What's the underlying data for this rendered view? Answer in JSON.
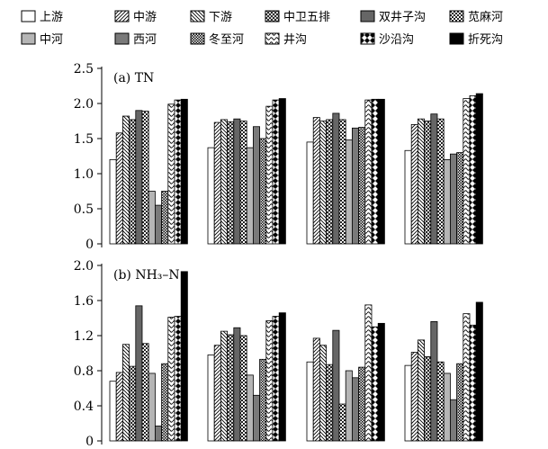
{
  "legend": [
    {
      "name": "上游",
      "pattern": "white"
    },
    {
      "name": "中游",
      "pattern": "diag-fwd"
    },
    {
      "name": "下游",
      "pattern": "diag-back"
    },
    {
      "name": "中卫五排",
      "pattern": "crosshatch"
    },
    {
      "name": "双井子沟",
      "pattern": "darkgray"
    },
    {
      "name": "苋麻河",
      "pattern": "checker"
    },
    {
      "name": "中河",
      "pattern": "lightgray"
    },
    {
      "name": "西河",
      "pattern": "midgray"
    },
    {
      "name": "冬至河",
      "pattern": "dense-checker"
    },
    {
      "name": "井沟",
      "pattern": "wave"
    },
    {
      "name": "沙沿沟",
      "pattern": "hourglass"
    },
    {
      "name": "折死沟",
      "pattern": "black"
    }
  ],
  "colors": {
    "black": "#000000",
    "darkgray": "#666666",
    "midgray": "#7a7a7a",
    "lightgray": "#b5b5b5",
    "white": "#ffffff"
  },
  "chart_data": [
    {
      "type": "bar",
      "title": "(a) TN",
      "ylim": [
        0,
        2.5
      ],
      "yticks": [
        "0",
        "0.5",
        "1.0",
        "1.5",
        "2.0",
        "2.5"
      ],
      "group_count": 4,
      "series": [
        {
          "name": "上游",
          "values": [
            1.2,
            1.37,
            1.45,
            1.33
          ]
        },
        {
          "name": "中游",
          "values": [
            1.58,
            1.73,
            1.8,
            1.7
          ]
        },
        {
          "name": "下游",
          "values": [
            1.82,
            1.77,
            1.75,
            1.78
          ]
        },
        {
          "name": "中卫五排",
          "values": [
            1.77,
            1.74,
            1.77,
            1.75
          ]
        },
        {
          "name": "双井子沟",
          "values": [
            1.9,
            1.78,
            1.86,
            1.85
          ]
        },
        {
          "name": "苋麻河",
          "values": [
            1.89,
            1.75,
            1.77,
            1.78
          ]
        },
        {
          "name": "中河",
          "values": [
            0.75,
            1.37,
            1.48,
            1.2
          ]
        },
        {
          "name": "西河",
          "values": [
            0.55,
            1.67,
            1.65,
            1.28
          ]
        },
        {
          "name": "冬至河",
          "values": [
            0.75,
            1.5,
            1.66,
            1.3
          ]
        },
        {
          "name": "井沟",
          "values": [
            1.99,
            1.96,
            2.05,
            2.07
          ]
        },
        {
          "name": "沙沿沟",
          "values": [
            2.05,
            2.05,
            2.06,
            2.11
          ]
        },
        {
          "name": "折死沟",
          "values": [
            2.06,
            2.07,
            2.06,
            2.14
          ]
        }
      ]
    },
    {
      "type": "bar",
      "title": "(b) NH₃–N",
      "ylim": [
        0,
        2.0
      ],
      "yticks": [
        "0",
        "0.4",
        "0.8",
        "1.2",
        "1.6",
        "2.0"
      ],
      "group_count": 4,
      "series": [
        {
          "name": "上游",
          "values": [
            0.68,
            0.98,
            0.9,
            0.86
          ]
        },
        {
          "name": "中游",
          "values": [
            0.78,
            1.09,
            1.17,
            1.01
          ]
        },
        {
          "name": "下游",
          "values": [
            1.1,
            1.25,
            1.09,
            1.15
          ]
        },
        {
          "name": "中卫五排",
          "values": [
            0.85,
            1.21,
            0.87,
            0.96
          ]
        },
        {
          "name": "双井子沟",
          "values": [
            1.54,
            1.29,
            1.26,
            1.36
          ]
        },
        {
          "name": "苋麻河",
          "values": [
            1.11,
            1.2,
            0.42,
            0.9
          ]
        },
        {
          "name": "中河",
          "values": [
            0.77,
            0.75,
            0.8,
            0.77
          ]
        },
        {
          "name": "西河",
          "values": [
            0.17,
            0.52,
            0.72,
            0.47
          ]
        },
        {
          "name": "冬至河",
          "values": [
            0.88,
            0.93,
            0.84,
            0.88
          ]
        },
        {
          "name": "井沟",
          "values": [
            1.41,
            1.37,
            1.55,
            1.45
          ]
        },
        {
          "name": "沙沿沟",
          "values": [
            1.42,
            1.42,
            1.3,
            1.32
          ]
        },
        {
          "name": "折死沟",
          "values": [
            1.93,
            1.46,
            1.34,
            1.58
          ]
        }
      ]
    }
  ]
}
